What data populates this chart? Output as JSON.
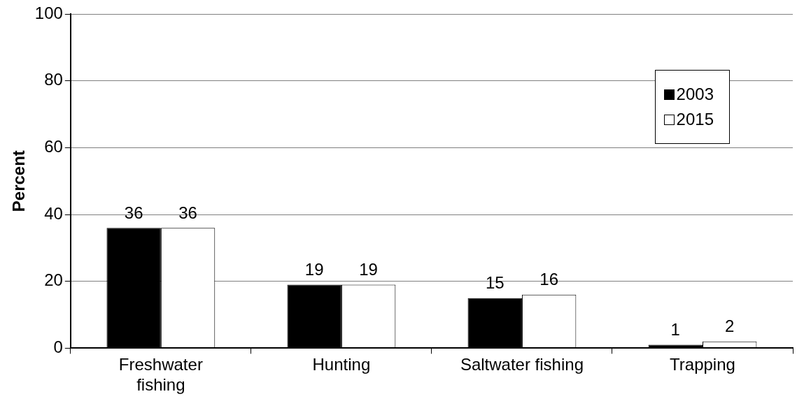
{
  "chart_data": {
    "type": "bar",
    "ylabel": "Percent",
    "categories": [
      "Freshwater fishing",
      "Hunting",
      "Saltwater fishing",
      "Trapping"
    ],
    "series": [
      {
        "name": "2003",
        "color": "#000000",
        "values": [
          36,
          19,
          15,
          1
        ]
      },
      {
        "name": "2015",
        "color": "#ffffff",
        "values": [
          36,
          19,
          16,
          2
        ]
      }
    ],
    "ylim": [
      0,
      100
    ],
    "yticks": [
      0,
      20,
      40,
      60,
      80,
      100
    ],
    "grid": "y",
    "legend": "top right",
    "data_labels": true
  }
}
